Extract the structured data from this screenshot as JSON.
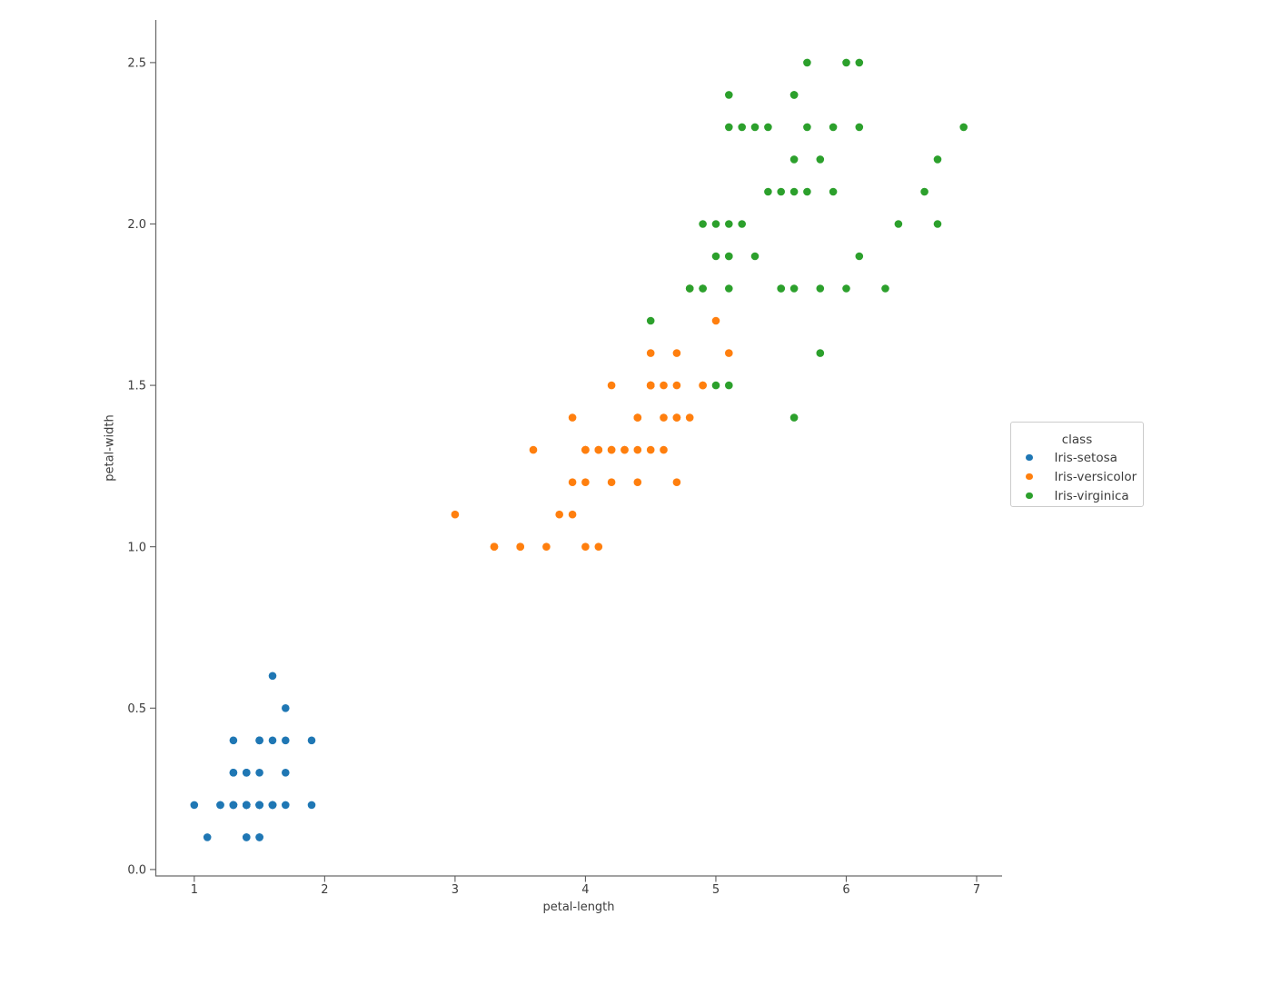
{
  "chart_data": {
    "type": "scatter",
    "title": "",
    "xlabel": "petal-length",
    "ylabel": "petal-width",
    "xlim": [
      0.705,
      7.195
    ],
    "ylim": [
      -0.02,
      2.632
    ],
    "xticks": [
      1,
      2,
      3,
      4,
      5,
      6,
      7
    ],
    "xtick_labels": [
      "1",
      "2",
      "3",
      "4",
      "5",
      "6",
      "7"
    ],
    "yticks": [
      0.0,
      0.5,
      1.0,
      1.5,
      2.0,
      2.5
    ],
    "ytick_labels": [
      "0.0",
      "0.5",
      "1.0",
      "1.5",
      "2.0",
      "2.5"
    ],
    "grid": false,
    "legend": {
      "title": "class",
      "position": "outside-right"
    },
    "marker": "circle",
    "colors": {
      "setosa": "#1f77b4",
      "versicolor": "#ff7f0e",
      "virginica": "#2ca02c"
    },
    "series": [
      {
        "name": "Iris-setosa",
        "color": "#1f77b4",
        "points": [
          [
            1.4,
            0.2
          ],
          [
            1.4,
            0.2
          ],
          [
            1.3,
            0.2
          ],
          [
            1.5,
            0.2
          ],
          [
            1.4,
            0.2
          ],
          [
            1.7,
            0.4
          ],
          [
            1.4,
            0.3
          ],
          [
            1.5,
            0.2
          ],
          [
            1.4,
            0.2
          ],
          [
            1.5,
            0.1
          ],
          [
            1.5,
            0.2
          ],
          [
            1.6,
            0.2
          ],
          [
            1.4,
            0.1
          ],
          [
            1.1,
            0.1
          ],
          [
            1.2,
            0.2
          ],
          [
            1.5,
            0.4
          ],
          [
            1.3,
            0.4
          ],
          [
            1.4,
            0.3
          ],
          [
            1.7,
            0.3
          ],
          [
            1.5,
            0.3
          ],
          [
            1.7,
            0.2
          ],
          [
            1.5,
            0.4
          ],
          [
            1.0,
            0.2
          ],
          [
            1.7,
            0.5
          ],
          [
            1.9,
            0.2
          ],
          [
            1.6,
            0.2
          ],
          [
            1.6,
            0.4
          ],
          [
            1.5,
            0.2
          ],
          [
            1.4,
            0.2
          ],
          [
            1.6,
            0.2
          ],
          [
            1.6,
            0.2
          ],
          [
            1.5,
            0.4
          ],
          [
            1.5,
            0.1
          ],
          [
            1.4,
            0.2
          ],
          [
            1.5,
            0.2
          ],
          [
            1.2,
            0.2
          ],
          [
            1.3,
            0.2
          ],
          [
            1.4,
            0.1
          ],
          [
            1.3,
            0.2
          ],
          [
            1.5,
            0.2
          ],
          [
            1.3,
            0.3
          ],
          [
            1.3,
            0.3
          ],
          [
            1.3,
            0.2
          ],
          [
            1.6,
            0.6
          ],
          [
            1.9,
            0.4
          ],
          [
            1.4,
            0.3
          ],
          [
            1.6,
            0.2
          ],
          [
            1.4,
            0.2
          ],
          [
            1.5,
            0.2
          ],
          [
            1.4,
            0.2
          ]
        ]
      },
      {
        "name": "Iris-versicolor",
        "color": "#ff7f0e",
        "points": [
          [
            4.7,
            1.4
          ],
          [
            4.5,
            1.5
          ],
          [
            4.9,
            1.5
          ],
          [
            4.0,
            1.3
          ],
          [
            4.6,
            1.5
          ],
          [
            4.5,
            1.3
          ],
          [
            4.7,
            1.6
          ],
          [
            3.3,
            1.0
          ],
          [
            4.6,
            1.3
          ],
          [
            3.9,
            1.4
          ],
          [
            3.5,
            1.0
          ],
          [
            4.2,
            1.5
          ],
          [
            4.0,
            1.0
          ],
          [
            4.7,
            1.4
          ],
          [
            3.6,
            1.3
          ],
          [
            4.4,
            1.4
          ],
          [
            4.5,
            1.5
          ],
          [
            4.1,
            1.0
          ],
          [
            4.5,
            1.5
          ],
          [
            3.9,
            1.1
          ],
          [
            4.8,
            1.8
          ],
          [
            4.0,
            1.3
          ],
          [
            4.9,
            1.5
          ],
          [
            4.7,
            1.2
          ],
          [
            4.3,
            1.3
          ],
          [
            4.4,
            1.4
          ],
          [
            4.8,
            1.4
          ],
          [
            5.0,
            1.7
          ],
          [
            4.5,
            1.5
          ],
          [
            3.5,
            1.0
          ],
          [
            3.8,
            1.1
          ],
          [
            3.7,
            1.0
          ],
          [
            3.9,
            1.2
          ],
          [
            5.1,
            1.6
          ],
          [
            4.5,
            1.5
          ],
          [
            4.5,
            1.6
          ],
          [
            4.7,
            1.5
          ],
          [
            4.4,
            1.3
          ],
          [
            4.1,
            1.3
          ],
          [
            4.0,
            1.3
          ],
          [
            4.4,
            1.2
          ],
          [
            4.6,
            1.4
          ],
          [
            4.0,
            1.2
          ],
          [
            3.3,
            1.0
          ],
          [
            4.2,
            1.3
          ],
          [
            4.2,
            1.2
          ],
          [
            4.2,
            1.3
          ],
          [
            4.3,
            1.3
          ],
          [
            3.0,
            1.1
          ],
          [
            4.1,
            1.3
          ]
        ]
      },
      {
        "name": "Iris-virginica",
        "color": "#2ca02c",
        "points": [
          [
            6.0,
            2.5
          ],
          [
            5.1,
            1.9
          ],
          [
            5.9,
            2.1
          ],
          [
            5.6,
            1.8
          ],
          [
            5.8,
            2.2
          ],
          [
            6.6,
            2.1
          ],
          [
            4.5,
            1.7
          ],
          [
            6.3,
            1.8
          ],
          [
            5.8,
            1.8
          ],
          [
            6.1,
            2.5
          ],
          [
            5.1,
            2.0
          ],
          [
            5.3,
            1.9
          ],
          [
            5.5,
            2.1
          ],
          [
            5.0,
            2.0
          ],
          [
            5.1,
            2.4
          ],
          [
            5.3,
            2.3
          ],
          [
            5.5,
            1.8
          ],
          [
            6.7,
            2.2
          ],
          [
            6.9,
            2.3
          ],
          [
            5.0,
            1.5
          ],
          [
            5.7,
            2.3
          ],
          [
            4.9,
            2.0
          ],
          [
            6.7,
            2.0
          ],
          [
            4.9,
            1.8
          ],
          [
            5.7,
            2.1
          ],
          [
            6.0,
            1.8
          ],
          [
            4.8,
            1.8
          ],
          [
            4.9,
            1.8
          ],
          [
            5.6,
            2.1
          ],
          [
            5.8,
            1.6
          ],
          [
            6.1,
            1.9
          ],
          [
            6.4,
            2.0
          ],
          [
            5.6,
            2.2
          ],
          [
            5.1,
            1.5
          ],
          [
            5.6,
            1.4
          ],
          [
            6.1,
            2.3
          ],
          [
            5.6,
            2.4
          ],
          [
            5.5,
            1.8
          ],
          [
            4.8,
            1.8
          ],
          [
            5.4,
            2.1
          ],
          [
            5.6,
            2.4
          ],
          [
            5.1,
            2.3
          ],
          [
            5.1,
            1.9
          ],
          [
            5.9,
            2.3
          ],
          [
            5.7,
            2.5
          ],
          [
            5.2,
            2.3
          ],
          [
            5.0,
            1.9
          ],
          [
            5.2,
            2.0
          ],
          [
            5.4,
            2.3
          ],
          [
            5.1,
            1.8
          ]
        ]
      }
    ]
  }
}
